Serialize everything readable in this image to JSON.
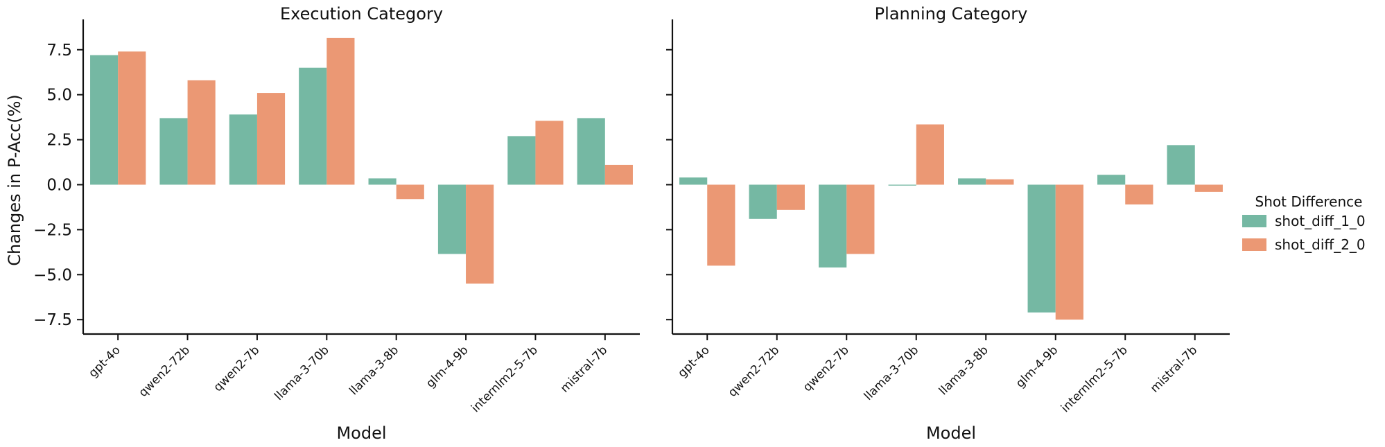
{
  "chart_data": [
    {
      "type": "bar",
      "title": "Execution Category",
      "xlabel": "Model",
      "ylabel": "Changes in P-Acc(%)",
      "ylim": [
        -8.3,
        8.8
      ],
      "yticks": [
        7.5,
        5.0,
        2.5,
        0.0,
        -2.5,
        -5.0,
        -7.5
      ],
      "ytick_labels": [
        "7.5",
        "5.0",
        "2.5",
        "0.0",
        "−2.5",
        "−5.0",
        "−7.5"
      ],
      "categories": [
        "gpt-4o",
        "qwen2-72b",
        "qwen2-7b",
        "llama-3-70b",
        "llama-3-8b",
        "glm-4-9b",
        "internlm2-5-7b",
        "mistral-7b"
      ],
      "series": [
        {
          "name": "shot_diff_1_0",
          "values": [
            7.2,
            3.7,
            3.9,
            6.5,
            0.35,
            -3.85,
            2.7,
            3.7
          ]
        },
        {
          "name": "shot_diff_2_0",
          "values": [
            7.4,
            5.8,
            5.1,
            8.15,
            -0.8,
            -5.5,
            3.55,
            1.1
          ]
        }
      ]
    },
    {
      "type": "bar",
      "title": "Planning Category",
      "xlabel": "Model",
      "ylabel": "",
      "ylim": [
        -8.3,
        8.8
      ],
      "yticks": [
        7.5,
        5.0,
        2.5,
        0.0,
        -2.5,
        -5.0,
        -7.5
      ],
      "categories": [
        "gpt-4o",
        "qwen2-72b",
        "qwen2-7b",
        "llama-3-70b",
        "llama-3-8b",
        "glm-4-9b",
        "internlm2-5-7b",
        "mistral-7b"
      ],
      "series": [
        {
          "name": "shot_diff_1_0",
          "values": [
            0.4,
            -1.9,
            -4.6,
            -0.05,
            0.35,
            -7.1,
            0.55,
            2.2
          ]
        },
        {
          "name": "shot_diff_2_0",
          "values": [
            -4.5,
            -1.4,
            -3.85,
            3.35,
            0.3,
            -7.5,
            -1.1,
            -0.4
          ]
        }
      ]
    }
  ],
  "legend": {
    "title": "Shot Difference",
    "placement": "right",
    "entries": [
      "shot_diff_1_0",
      "shot_diff_2_0"
    ]
  },
  "colors": {
    "shot_diff_1_0": "#75b8a3",
    "shot_diff_2_0": "#eb9874"
  }
}
